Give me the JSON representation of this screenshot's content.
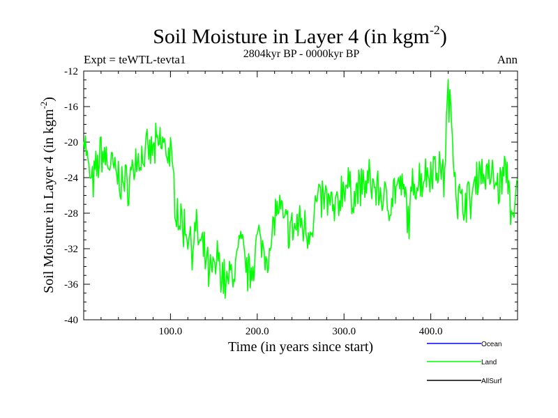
{
  "chart_data": {
    "type": "line",
    "title": "Soil Moisture in Layer 4 (in kgm",
    "title_sup": "-2",
    "title_close": ")",
    "subtitle": "2804kyr BP - 0000kyr BP",
    "left_label": "Expt = teWTL-tevta1",
    "right_label": "Ann",
    "xlabel": "Time (in years since start)",
    "ylabel": "Soil Moisture in Layer 4 (in kgm",
    "ylabel_sup": "-2",
    "ylabel_close": ")",
    "xlim": [
      0,
      500
    ],
    "ylim": [
      -40,
      -12
    ],
    "xticks_major": [
      100,
      200,
      300,
      400
    ],
    "xtick_labels": [
      "100.0",
      "200.0",
      "300.0",
      "400.0"
    ],
    "yticks_major": [
      -40,
      -36,
      -32,
      -28,
      -24,
      -20,
      -16,
      -12
    ],
    "ytick_labels": [
      "-40",
      "-36",
      "-32",
      "-28",
      "-24",
      "-20",
      "-16",
      "-12"
    ],
    "legend_position": "bottom-right",
    "series": [
      {
        "name": "Ocean",
        "color": "#0000ff",
        "values": []
      },
      {
        "name": "Land",
        "color": "#00ff00",
        "anchor_x": [
          0,
          5,
          10,
          20,
          30,
          40,
          50,
          60,
          70,
          80,
          90,
          100,
          105,
          110,
          115,
          120,
          125,
          130,
          135,
          140,
          145,
          150,
          155,
          160,
          165,
          170,
          175,
          180,
          185,
          190,
          195,
          200,
          205,
          210,
          215,
          220,
          225,
          230,
          240,
          250,
          260,
          270,
          280,
          290,
          300,
          310,
          320,
          330,
          340,
          350,
          360,
          370,
          375,
          380,
          390,
          400,
          410,
          415,
          420,
          425,
          430,
          435,
          440,
          445,
          450,
          455,
          460,
          470,
          480,
          485,
          490,
          495,
          500
        ],
        "anchor_y": [
          -18.5,
          -23,
          -25,
          -21,
          -22.5,
          -24,
          -25,
          -22,
          -21.5,
          -21,
          -20,
          -21.5,
          -26,
          -28.5,
          -29.5,
          -30,
          -31.5,
          -30,
          -32,
          -33,
          -35,
          -34.5,
          -33,
          -35,
          -36,
          -35,
          -34,
          -31.5,
          -33,
          -35,
          -33.5,
          -31,
          -31.5,
          -32,
          -33,
          -28,
          -27.5,
          -29,
          -30,
          -29,
          -30,
          -26.5,
          -26.5,
          -28,
          -24.5,
          -26,
          -25,
          -24.5,
          -25.5,
          -27,
          -25,
          -26,
          -29,
          -24.5,
          -24,
          -23,
          -22.5,
          -24.5,
          -14.5,
          -19,
          -26,
          -27,
          -26,
          -27,
          -25,
          -23,
          -23.5,
          -24,
          -25,
          -23,
          -24.5,
          -30.5,
          -24
        ]
      },
      {
        "name": "AllSurf",
        "color": "#000000",
        "values": []
      }
    ]
  }
}
